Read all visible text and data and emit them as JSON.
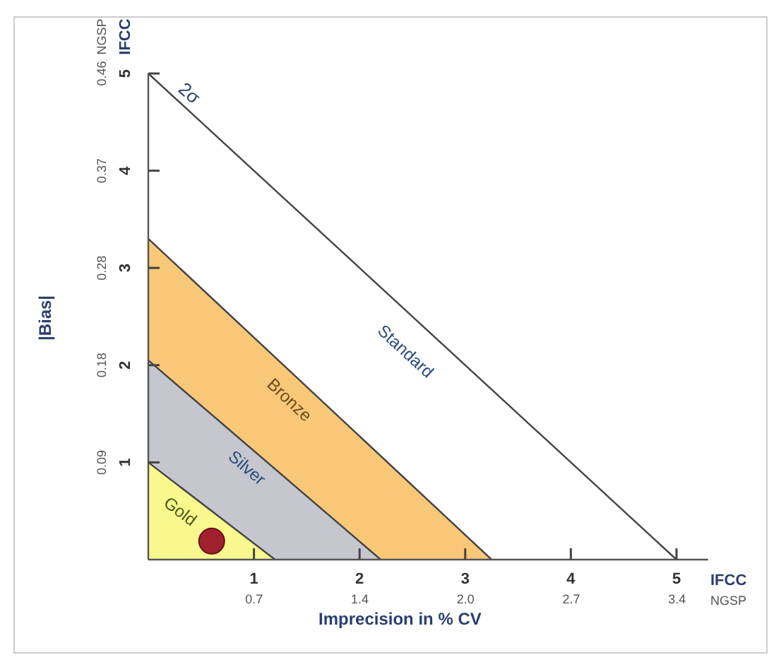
{
  "chart_data": {
    "type": "area",
    "xlabel": "Imprecision in % CV",
    "y2label": "|Bias|",
    "xlim": [
      0,
      5.3
    ],
    "xticks": [
      1,
      2,
      3,
      4,
      5
    ],
    "ylim": [
      0,
      5
    ],
    "yticks": [
      1,
      2,
      3,
      4,
      5
    ],
    "x2lim": [
      0,
      3.6
    ],
    "x2ticks": [
      {
        "value": 0.68,
        "label": "0.7"
      },
      {
        "value": 1.36,
        "label": "1.4"
      },
      {
        "value": 2.04,
        "label": "2.0"
      },
      {
        "value": 2.72,
        "label": "2.7"
      },
      {
        "value": 3.4,
        "label": "3.4"
      }
    ],
    "y2lim": [
      0,
      0.46
    ],
    "y2ticks": [
      {
        "value": 0.092,
        "label": "0.09"
      },
      {
        "value": 0.184,
        "label": "0.18"
      },
      {
        "value": 0.276,
        "label": "0.28"
      },
      {
        "value": 0.368,
        "label": "0.37"
      },
      {
        "value": 0.46,
        "label": "0.46"
      }
    ],
    "series": [
      {
        "name": "Standard",
        "color": "#ffffff",
        "x": [
          0,
          5
        ],
        "values": [
          5,
          0
        ]
      },
      {
        "name": "Bronze",
        "color": "#f8c878",
        "x": [
          0,
          3.25
        ],
        "values": [
          3.3,
          0
        ]
      },
      {
        "name": "Silver",
        "color": "#c6c6ce",
        "x": [
          0,
          2.2
        ],
        "values": [
          2.05,
          0
        ]
      },
      {
        "name": "Gold",
        "color": "#f8f88e",
        "x": [
          0,
          1.2
        ],
        "values": [
          1.0,
          0
        ]
      },
      {
        "type": "scatter",
        "color": "#a02030",
        "x": [
          0.6
        ],
        "values": [
          0.19
        ],
        "marker": "circle"
      }
    ],
    "annotations": [
      {
        "text": "2σ",
        "x": 0.35,
        "y": 4.75
      },
      "IFCC",
      "NGSP",
      "IFCC",
      "NGSP"
    ],
    "grid": false
  }
}
